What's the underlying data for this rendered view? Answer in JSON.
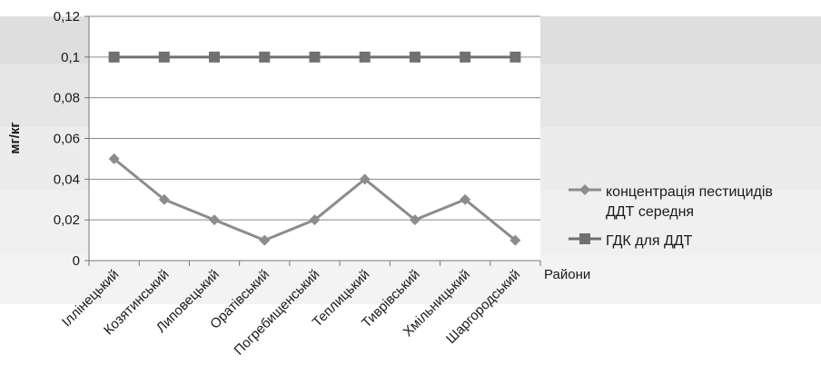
{
  "chart_data": {
    "type": "line",
    "title": "",
    "xlabel": "Райони",
    "ylabel": "мг/кг",
    "ylim": [
      0,
      0.12
    ],
    "yticks": [
      "0",
      "0,02",
      "0,04",
      "0,06",
      "0,08",
      "0,1",
      "0,12"
    ],
    "categories": [
      "Іллінецький",
      "Козятинський",
      "Липовецький",
      "Оратівський",
      "Погребищенський",
      "Теплицький",
      "Тиврівський",
      "Хмільницький",
      "Шаргородський"
    ],
    "series": [
      {
        "name_lines": [
          "концентрація пестицидів",
          "ДДТ середня"
        ],
        "values": [
          0.05,
          0.03,
          0.02,
          0.01,
          0.02,
          0.04,
          0.02,
          0.03,
          0.01
        ],
        "marker": "diamond",
        "color": "#8c8c8c"
      },
      {
        "name_lines": [
          "ГДК для ДДТ"
        ],
        "values": [
          0.1,
          0.1,
          0.1,
          0.1,
          0.1,
          0.1,
          0.1,
          0.1,
          0.1
        ],
        "marker": "square",
        "color": "#707070"
      }
    ],
    "grid": true,
    "legend_position": "right"
  }
}
